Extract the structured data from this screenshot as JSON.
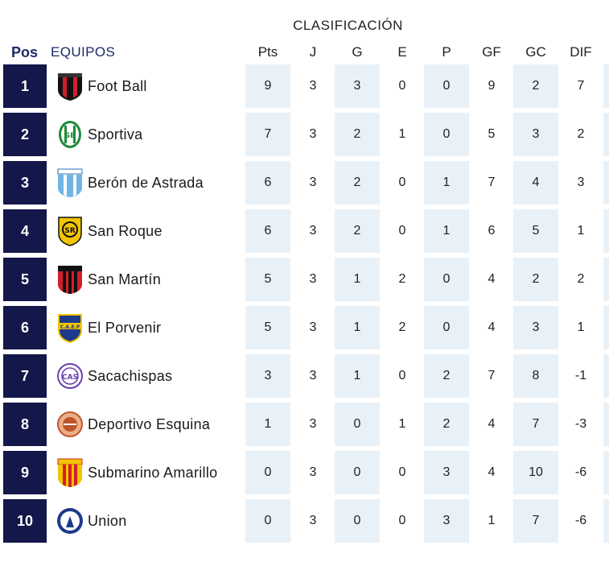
{
  "caption": "CLASIFICACIÓN",
  "headers": {
    "pos": "Pos",
    "team": "EQUIPOS",
    "cols": [
      "Pts",
      "J",
      "G",
      "E",
      "P",
      "GF",
      "GC",
      "DIF"
    ]
  },
  "rows": [
    {
      "pos": "1",
      "team": "Foot Ball",
      "crest": "foot-ball-crest",
      "stats": [
        "9",
        "3",
        "3",
        "0",
        "0",
        "9",
        "2",
        "7"
      ]
    },
    {
      "pos": "2",
      "team": "Sportiva",
      "crest": "sportiva-crest",
      "stats": [
        "7",
        "3",
        "2",
        "1",
        "0",
        "5",
        "3",
        "2"
      ]
    },
    {
      "pos": "3",
      "team": "Berón de Astrada",
      "crest": "beron-de-astrada-crest",
      "stats": [
        "6",
        "3",
        "2",
        "0",
        "1",
        "7",
        "4",
        "3"
      ]
    },
    {
      "pos": "4",
      "team": "San Roque",
      "crest": "san-roque-crest",
      "stats": [
        "6",
        "3",
        "2",
        "0",
        "1",
        "6",
        "5",
        "1"
      ]
    },
    {
      "pos": "5",
      "team": "San Martín",
      "crest": "san-martin-crest",
      "stats": [
        "5",
        "3",
        "1",
        "2",
        "0",
        "4",
        "2",
        "2"
      ]
    },
    {
      "pos": "6",
      "team": "El Porvenir",
      "crest": "el-porvenir-crest",
      "stats": [
        "5",
        "3",
        "1",
        "2",
        "0",
        "4",
        "3",
        "1"
      ]
    },
    {
      "pos": "7",
      "team": "Sacachispas",
      "crest": "sacachispas-crest",
      "stats": [
        "3",
        "3",
        "1",
        "0",
        "2",
        "7",
        "8",
        "-1"
      ]
    },
    {
      "pos": "8",
      "team": "Deportivo Esquina",
      "crest": "deportivo-esquina-crest",
      "stats": [
        "1",
        "3",
        "0",
        "1",
        "2",
        "4",
        "7",
        "-3"
      ]
    },
    {
      "pos": "9",
      "team": "Submarino Amarillo",
      "crest": "submarino-amarillo-crest",
      "stats": [
        "0",
        "3",
        "0",
        "0",
        "3",
        "4",
        "10",
        "-6"
      ]
    },
    {
      "pos": "10",
      "team": "Union",
      "crest": "union-crest",
      "stats": [
        "0",
        "3",
        "0",
        "0",
        "3",
        "1",
        "7",
        "-6"
      ]
    }
  ]
}
